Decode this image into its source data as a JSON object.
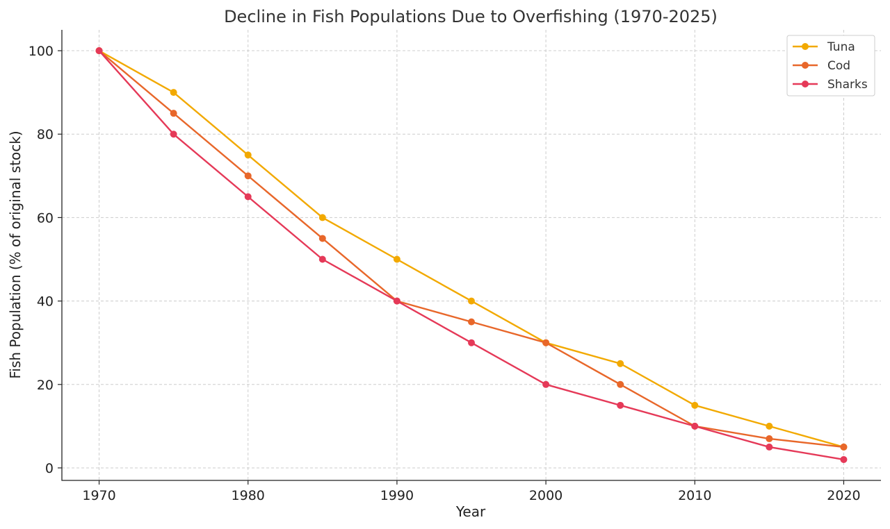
{
  "chart_data": {
    "type": "line",
    "title": "Decline in Fish Populations Due to Overfishing (1970-2025)",
    "xlabel": "Year",
    "ylabel": "Fish Population (% of original stock)",
    "x": [
      1970,
      1975,
      1980,
      1985,
      1990,
      1995,
      2000,
      2005,
      2010,
      2015,
      2020
    ],
    "xlim": [
      1967.5,
      2022.5
    ],
    "ylim": [
      -3,
      105
    ],
    "xticks": [
      1970,
      1980,
      1990,
      2000,
      2010,
      2020
    ],
    "yticks": [
      0,
      20,
      40,
      60,
      80,
      100
    ],
    "grid": true,
    "legend_position": "top-right",
    "series": [
      {
        "name": "Tuna",
        "color": "#f2a900",
        "values": [
          100,
          90,
          75,
          60,
          50,
          40,
          30,
          25,
          15,
          10,
          5
        ]
      },
      {
        "name": "Cod",
        "color": "#e8672a",
        "values": [
          100,
          85,
          70,
          55,
          40,
          35,
          30,
          20,
          10,
          7,
          5
        ]
      },
      {
        "name": "Sharks",
        "color": "#e53958",
        "values": [
          100,
          80,
          65,
          50,
          40,
          30,
          20,
          15,
          10,
          5,
          2
        ]
      }
    ]
  }
}
